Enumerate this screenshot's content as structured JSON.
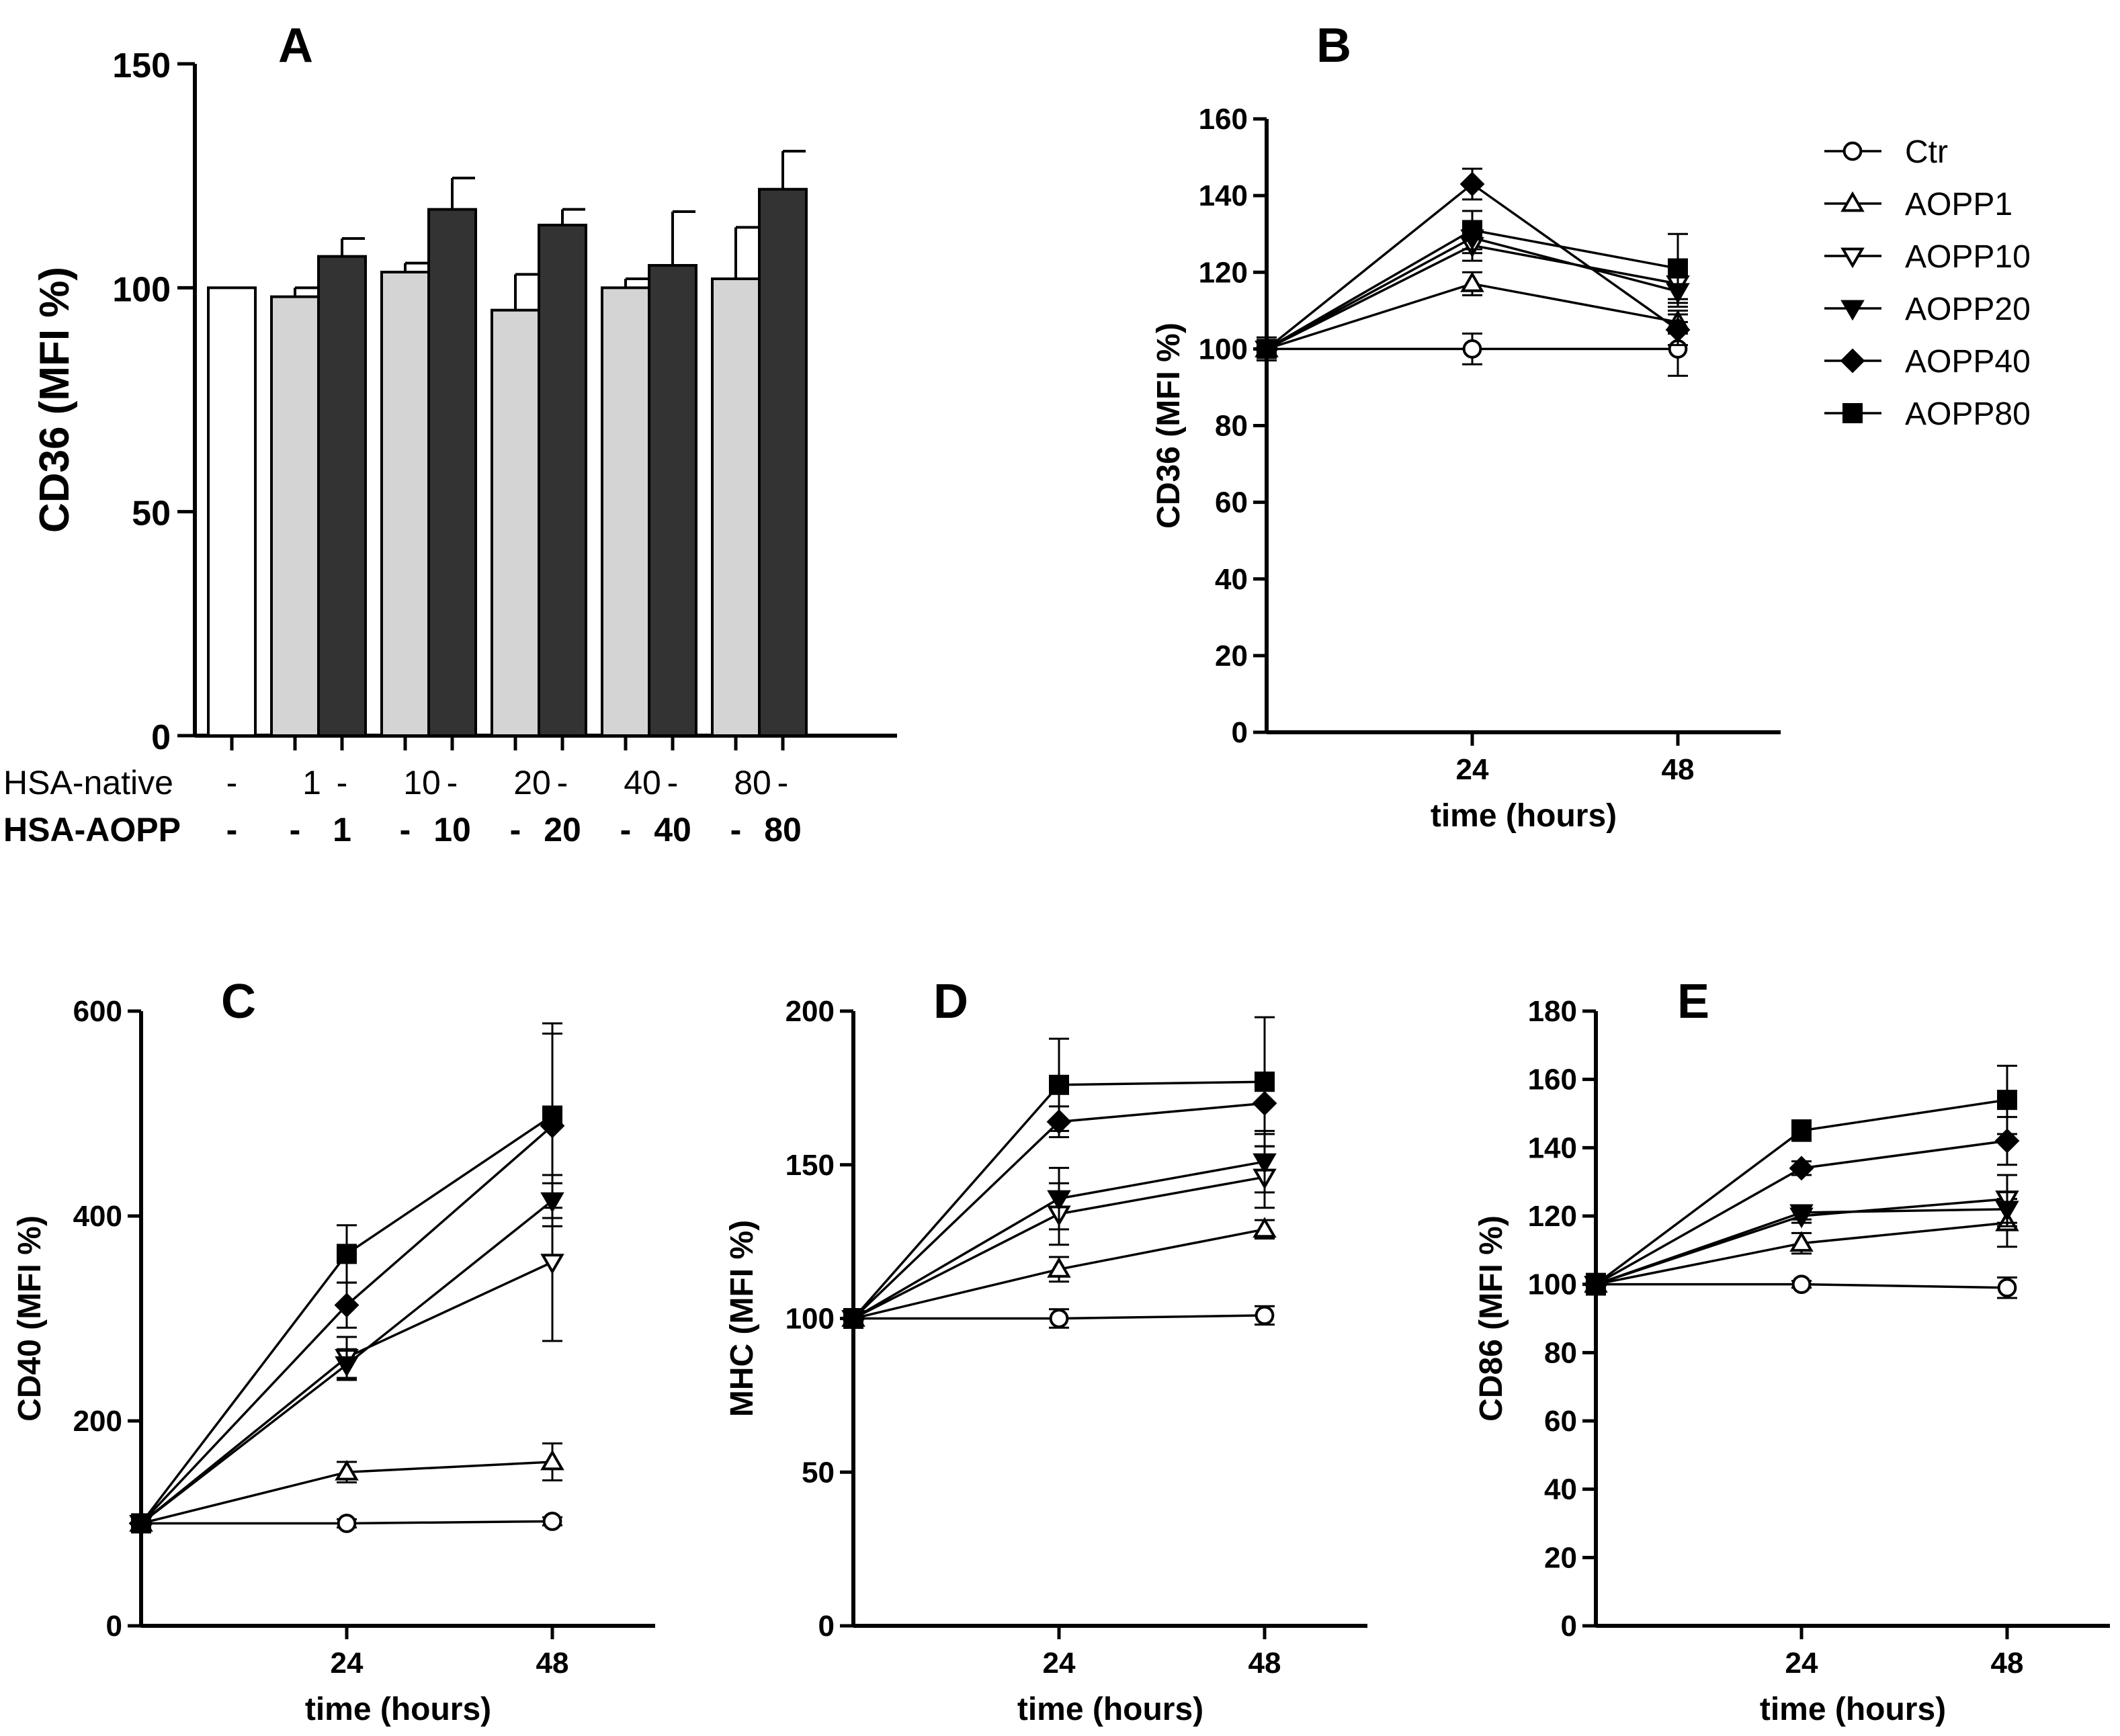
{
  "chart_data": [
    {
      "panel": "A",
      "type": "bar",
      "title": "A",
      "ylabel": "CD36 (MFI %)",
      "ylim": [
        0,
        150
      ],
      "yticks": [
        0,
        50,
        100,
        150
      ],
      "row_labels": [
        "HSA-native",
        "HSA-AOPP"
      ],
      "bars": [
        {
          "native": "-",
          "aopp": "-",
          "value": 100,
          "error": 0,
          "fill": "#ffffff"
        },
        {
          "native": "1",
          "aopp": "-",
          "value": 98,
          "error": 2,
          "fill": "#d4d4d4"
        },
        {
          "native": "-",
          "aopp": "1",
          "value": 107,
          "error": 4,
          "fill": "#333333"
        },
        {
          "native": "10",
          "aopp": "-",
          "value": 103.5,
          "error": 2,
          "fill": "#d4d4d4"
        },
        {
          "native": "-",
          "aopp": "10",
          "value": 117.5,
          "error": 7,
          "fill": "#333333"
        },
        {
          "native": "20",
          "aopp": "-",
          "value": 95,
          "error": 8,
          "fill": "#d4d4d4"
        },
        {
          "native": "-",
          "aopp": "20",
          "value": 114,
          "error": 3.5,
          "fill": "#333333"
        },
        {
          "native": "40",
          "aopp": "-",
          "value": 100,
          "error": 2,
          "fill": "#d4d4d4"
        },
        {
          "native": "-",
          "aopp": "40",
          "value": 105,
          "error": 12,
          "fill": "#333333"
        },
        {
          "native": "80",
          "aopp": "-",
          "value": 102,
          "error": 11.5,
          "fill": "#d4d4d4"
        },
        {
          "native": "-",
          "aopp": "80",
          "value": 122,
          "error": 8.5,
          "fill": "#333333"
        }
      ]
    },
    {
      "panel": "B",
      "type": "line",
      "title": "B",
      "ylabel": "CD36 (MFI %)",
      "xlabel": "time (hours)",
      "x": [
        0,
        24,
        48
      ],
      "xticks": [
        24,
        48
      ],
      "xlim": [
        0,
        60
      ],
      "ylim": [
        0,
        160
      ],
      "yticks": [
        0,
        20,
        40,
        60,
        80,
        100,
        120,
        140,
        160
      ],
      "series": [
        {
          "name": "Ctr",
          "marker": "circle-open",
          "values": [
            100,
            100,
            100
          ],
          "errors": [
            3,
            4,
            7
          ]
        },
        {
          "name": "AOPP1",
          "marker": "triangle-up-open",
          "values": [
            100,
            117,
            107
          ],
          "errors": [
            2,
            3,
            3
          ]
        },
        {
          "name": "AOPP10",
          "marker": "triangle-down-open",
          "values": [
            100,
            127,
            117
          ],
          "errors": [
            2,
            4,
            4
          ]
        },
        {
          "name": "AOPP20",
          "marker": "triangle-down-filled",
          "values": [
            100,
            129,
            115
          ],
          "errors": [
            2,
            4,
            4
          ]
        },
        {
          "name": "AOPP40",
          "marker": "diamond-filled",
          "values": [
            100,
            143,
            105
          ],
          "errors": [
            2,
            4,
            4
          ]
        },
        {
          "name": "AOPP80",
          "marker": "square-filled",
          "values": [
            100,
            131,
            121
          ],
          "errors": [
            2,
            5,
            9
          ]
        }
      ]
    },
    {
      "panel": "C",
      "type": "line",
      "title": "C",
      "ylabel": "CD40 (MFI %)",
      "xlabel": "time (hours)",
      "x": [
        0,
        24,
        48
      ],
      "xticks": [
        24,
        48
      ],
      "xlim": [
        0,
        60
      ],
      "ylim": [
        0,
        600
      ],
      "yticks": [
        0,
        200,
        400,
        600
      ],
      "series": [
        {
          "name": "Ctr",
          "marker": "circle-open",
          "values": [
            100,
            100,
            102
          ],
          "errors": [
            4,
            4,
            4
          ]
        },
        {
          "name": "AOPP1",
          "marker": "triangle-up-open",
          "values": [
            100,
            150,
            160
          ],
          "errors": [
            5,
            10,
            18
          ]
        },
        {
          "name": "AOPP10",
          "marker": "triangle-down-open",
          "values": [
            100,
            262,
            355
          ],
          "errors": [
            5,
            20,
            77
          ]
        },
        {
          "name": "AOPP20",
          "marker": "triangle-down-filled",
          "values": [
            100,
            255,
            415
          ],
          "errors": [
            5,
            15,
            25
          ]
        },
        {
          "name": "AOPP40",
          "marker": "diamond-filled",
          "values": [
            100,
            313,
            488
          ],
          "errors": [
            5,
            22,
            90
          ]
        },
        {
          "name": "AOPP80",
          "marker": "square-filled",
          "values": [
            100,
            363,
            498
          ],
          "errors": [
            5,
            28,
            90
          ]
        }
      ]
    },
    {
      "panel": "D",
      "type": "line",
      "title": "D",
      "ylabel": "MHC (MFI %)",
      "xlabel": "time (hours)",
      "x": [
        0,
        24,
        48
      ],
      "xticks": [
        24,
        48
      ],
      "xlim": [
        0,
        60
      ],
      "ylim": [
        0,
        200
      ],
      "yticks": [
        0,
        50,
        100,
        150,
        200
      ],
      "series": [
        {
          "name": "Ctr",
          "marker": "circle-open",
          "values": [
            100,
            100,
            101
          ],
          "errors": [
            3,
            3,
            3
          ]
        },
        {
          "name": "AOPP1",
          "marker": "triangle-up-open",
          "values": [
            100,
            116,
            129
          ],
          "errors": [
            3,
            4,
            3
          ]
        },
        {
          "name": "AOPP10",
          "marker": "triangle-down-open",
          "values": [
            100,
            134,
            146
          ],
          "errors": [
            3,
            10,
            10
          ]
        },
        {
          "name": "AOPP20",
          "marker": "triangle-down-filled",
          "values": [
            100,
            139,
            151
          ],
          "errors": [
            3,
            10,
            10
          ]
        },
        {
          "name": "AOPP40",
          "marker": "diamond-filled",
          "values": [
            100,
            164,
            170
          ],
          "errors": [
            3,
            5,
            10
          ]
        },
        {
          "name": "AOPP80",
          "marker": "square-filled",
          "values": [
            100,
            176,
            177
          ],
          "errors": [
            3,
            15,
            21
          ]
        }
      ]
    },
    {
      "panel": "E",
      "type": "line",
      "title": "E",
      "ylabel": "CD86 (MFI %)",
      "xlabel": "time (hours)",
      "x": [
        0,
        24,
        48
      ],
      "xticks": [
        24,
        48
      ],
      "xlim": [
        0,
        60
      ],
      "ylim": [
        0,
        180
      ],
      "yticks": [
        0,
        20,
        40,
        60,
        80,
        100,
        120,
        140,
        160,
        180
      ],
      "series": [
        {
          "name": "Ctr",
          "marker": "circle-open",
          "values": [
            100,
            100,
            99
          ],
          "errors": [
            3,
            1,
            3
          ]
        },
        {
          "name": "AOPP1",
          "marker": "triangle-up-open",
          "values": [
            100,
            112,
            118
          ],
          "errors": [
            3,
            3,
            7
          ]
        },
        {
          "name": "AOPP10",
          "marker": "triangle-down-open",
          "values": [
            100,
            120,
            125
          ],
          "errors": [
            3,
            2,
            7
          ]
        },
        {
          "name": "AOPP20",
          "marker": "triangle-down-filled",
          "values": [
            100,
            121,
            122
          ],
          "errors": [
            3,
            2,
            5
          ]
        },
        {
          "name": "AOPP40",
          "marker": "diamond-filled",
          "values": [
            100,
            134,
            142
          ],
          "errors": [
            3,
            2,
            7
          ]
        },
        {
          "name": "AOPP80",
          "marker": "square-filled",
          "values": [
            100,
            145,
            154
          ],
          "errors": [
            3,
            3,
            10
          ]
        }
      ]
    }
  ],
  "legend": {
    "entries": [
      "Ctr",
      "AOPP1",
      "AOPP10",
      "AOPP20",
      "AOPP40",
      "AOPP80"
    ],
    "markers": [
      "circle-open",
      "triangle-up-open",
      "triangle-down-open",
      "triangle-down-filled",
      "diamond-filled",
      "square-filled"
    ]
  }
}
